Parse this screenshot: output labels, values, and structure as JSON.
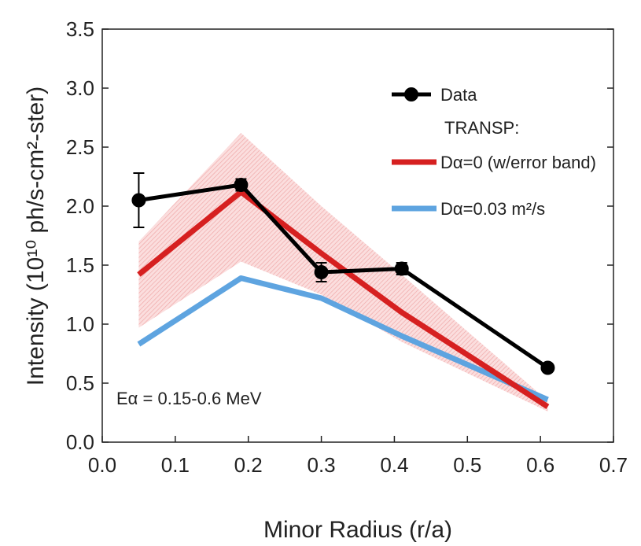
{
  "chart_data": {
    "type": "line",
    "xlabel": "Minor Radius (r/a)",
    "ylabel": "Intensity (10¹⁰ ph/s-cm²-ster)",
    "xlim": [
      0.0,
      0.7
    ],
    "ylim": [
      0.0,
      3.5
    ],
    "xticks": [
      "0.0",
      "0.1",
      "0.2",
      "0.3",
      "0.4",
      "0.5",
      "0.6",
      "0.7"
    ],
    "yticks": [
      "0.0",
      "0.5",
      "1.0",
      "1.5",
      "2.0",
      "2.5",
      "3.0",
      "3.5"
    ],
    "grid": false,
    "legend_position": "top-right",
    "legend_header": "TRANSP:",
    "annotation": "Eα = 0.15-0.6 MeV",
    "series": [
      {
        "name": "Data",
        "color": "#000000",
        "marker": "circle",
        "x": [
          0.05,
          0.19,
          0.3,
          0.41,
          0.61
        ],
        "y": [
          2.05,
          2.18,
          1.44,
          1.47,
          0.63
        ],
        "error": [
          0.23,
          0.05,
          0.08,
          0.05,
          0.03
        ]
      },
      {
        "name": "Dα=0 (w/error band)",
        "color": "#d62020",
        "x": [
          0.05,
          0.19,
          0.3,
          0.41,
          0.61
        ],
        "y": [
          1.42,
          2.12,
          1.6,
          1.1,
          0.3
        ],
        "band_low": [
          0.97,
          1.53,
          1.25,
          0.85,
          0.26
        ],
        "band_high": [
          1.7,
          2.62,
          2.0,
          1.42,
          0.35
        ],
        "band_color": "#f4b8b8"
      },
      {
        "name": "Dα=0.03 m²/s",
        "color": "#5ea4e0",
        "x": [
          0.05,
          0.19,
          0.3,
          0.41,
          0.61
        ],
        "y": [
          0.83,
          1.39,
          1.22,
          0.9,
          0.36
        ]
      }
    ]
  }
}
